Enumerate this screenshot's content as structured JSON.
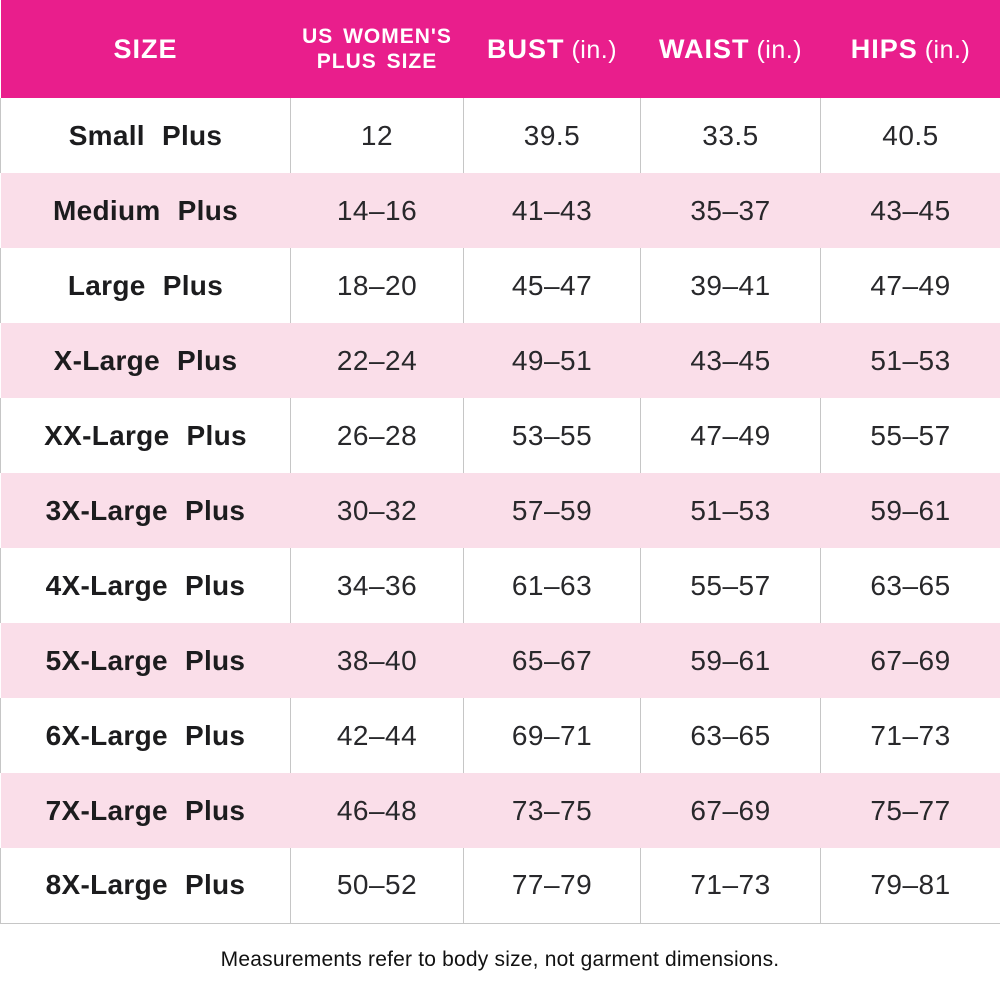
{
  "table": {
    "columns": [
      {
        "title": "SIZE",
        "line2": "",
        "unit": ""
      },
      {
        "title": "US WOMEN'S",
        "line2": "PLUS SIZE",
        "unit": ""
      },
      {
        "title": "BUST",
        "line2": "",
        "unit": "(in.)"
      },
      {
        "title": "WAIST",
        "line2": "",
        "unit": "(in.)"
      },
      {
        "title": "HIPS",
        "line2": "",
        "unit": "(in.)"
      }
    ],
    "rows": [
      {
        "size": "Small Plus",
        "us_plus": "12",
        "bust": "39.5",
        "waist": "33.5",
        "hips": "40.5"
      },
      {
        "size": "Medium Plus",
        "us_plus": "14–16",
        "bust": "41–43",
        "waist": "35–37",
        "hips": "43–45"
      },
      {
        "size": "Large Plus",
        "us_plus": "18–20",
        "bust": "45–47",
        "waist": "39–41",
        "hips": "47–49"
      },
      {
        "size": "X-Large Plus",
        "us_plus": "22–24",
        "bust": "49–51",
        "waist": "43–45",
        "hips": "51–53"
      },
      {
        "size": "XX-Large Plus",
        "us_plus": "26–28",
        "bust": "53–55",
        "waist": "47–49",
        "hips": "55–57"
      },
      {
        "size": "3X-Large Plus",
        "us_plus": "30–32",
        "bust": "57–59",
        "waist": "51–53",
        "hips": "59–61"
      },
      {
        "size": "4X-Large Plus",
        "us_plus": "34–36",
        "bust": "61–63",
        "waist": "55–57",
        "hips": "63–65"
      },
      {
        "size": "5X-Large Plus",
        "us_plus": "38–40",
        "bust": "65–67",
        "waist": "59–61",
        "hips": "67–69"
      },
      {
        "size": "6X-Large Plus",
        "us_plus": "42–44",
        "bust": "69–71",
        "waist": "63–65",
        "hips": "71–73"
      },
      {
        "size": "7X-Large Plus",
        "us_plus": "46–48",
        "bust": "73–75",
        "waist": "67–69",
        "hips": "75–77"
      },
      {
        "size": "8X-Large Plus",
        "us_plus": "50–52",
        "bust": "77–79",
        "waist": "71–73",
        "hips": "79–81"
      }
    ]
  },
  "footnote": "Measurements refer to body size, not garment dimensions.",
  "colors": {
    "header_bg": "#E91E8C",
    "header_text": "#FFFFFF",
    "alt_row_bg": "#FADEE9",
    "grid_line": "#C6C6C6",
    "text": "#28282B"
  },
  "chart_data": {
    "type": "table",
    "title": "US Women's Plus Size Chart",
    "columns": [
      "SIZE",
      "US WOMEN'S PLUS SIZE",
      "BUST (in.)",
      "WAIST (in.)",
      "HIPS (in.)"
    ],
    "rows": [
      [
        "Small Plus",
        "12",
        "39.5",
        "33.5",
        "40.5"
      ],
      [
        "Medium Plus",
        "14–16",
        "41–43",
        "35–37",
        "43–45"
      ],
      [
        "Large Plus",
        "18–20",
        "45–47",
        "39–41",
        "47–49"
      ],
      [
        "X-Large Plus",
        "22–24",
        "49–51",
        "43–45",
        "51–53"
      ],
      [
        "XX-Large Plus",
        "26–28",
        "53–55",
        "47–49",
        "55–57"
      ],
      [
        "3X-Large Plus",
        "30–32",
        "57–59",
        "51–53",
        "59–61"
      ],
      [
        "4X-Large Plus",
        "34–36",
        "61–63",
        "55–57",
        "63–65"
      ],
      [
        "5X-Large Plus",
        "38–40",
        "65–67",
        "59–61",
        "67–69"
      ],
      [
        "6X-Large Plus",
        "42–44",
        "69–71",
        "63–65",
        "71–73"
      ],
      [
        "7X-Large Plus",
        "46–48",
        "73–75",
        "67–69",
        "75–77"
      ],
      [
        "8X-Large Plus",
        "50–52",
        "77–79",
        "71–73",
        "79–81"
      ]
    ],
    "footnote": "Measurements refer to body size, not garment dimensions.",
    "layout": {
      "header_fill": "#E91E8C",
      "row_banding": [
        "#FFFFFF",
        "#FADEE9"
      ],
      "grid": "vertical-lines-on-white-rows-only"
    }
  }
}
